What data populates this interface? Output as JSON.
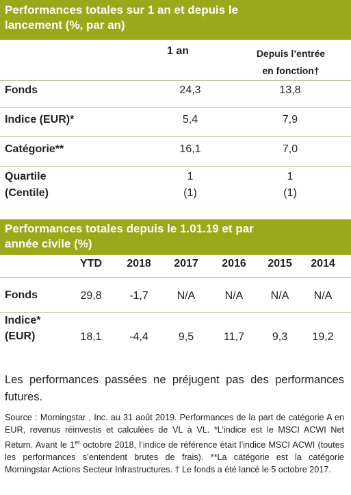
{
  "table1": {
    "title_line1": "Performances totales sur 1 an et depuis le",
    "title_line2": "lancement (%, par an)",
    "col1": "1 an",
    "col2_line1": "Depuis l’entrée",
    "col2_line2": "en fonction†",
    "rows": [
      {
        "label": "Fonds",
        "v1": "24,3",
        "v2": "13,8"
      },
      {
        "label": "Indice (EUR)*",
        "v1": "5,4",
        "v2": "7,9"
      },
      {
        "label": "Catégorie**",
        "v1": "16,1",
        "v2": "7,0"
      }
    ],
    "quartile": {
      "label_line1": "Quartile",
      "label_line2": "(Centile)",
      "v1_line1": "1",
      "v1_line2": "(1)",
      "v2_line1": "1",
      "v2_line2": "(1)"
    }
  },
  "table2": {
    "title_line1": "Performances totales depuis le 1.01.19 et par",
    "title_line2": "année civile (%)",
    "headers": [
      "YTD",
      "2018",
      "2017",
      "2016",
      "2015",
      "2014"
    ],
    "fonds": {
      "label": "Fonds",
      "values": [
        "29,8",
        "-1,7",
        "N/A",
        "N/A",
        "N/A",
        "N/A"
      ]
    },
    "indice": {
      "label_line1": "Indice*",
      "label_line2": "(EUR)",
      "values": [
        "18,1",
        "-4,4",
        "9,5",
        "11,7",
        "9,3",
        "19,2"
      ]
    }
  },
  "disclaimer": "Les performances passées ne préjugent pas des performances futures.",
  "source": {
    "part1": "Source : Morningstar , Inc. au 31 août 2019. Performances de la part de catégorie A en EUR, revenus réinvestis et calculées de VL à VL. *L’indice est le MSCI ACWI Net Return. Avant le 1",
    "sup": "er",
    "part2": " octobre 2018, l’indice de référence était l’indice MSCI ACWI (toutes les performances s’entendent brutes de frais). **La catégorie est la catégorie Morningstar Actions Secteur Infrastructures. † Le fonds a été lancé le 5 octobre 2017."
  },
  "colors": {
    "band": "#9aa81a",
    "rule": "#bfc39a"
  }
}
